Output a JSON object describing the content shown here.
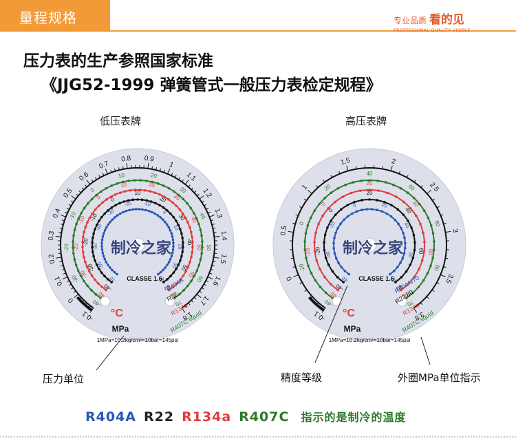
{
  "header": {
    "tab_label": "量程规格",
    "brand_prefix": "专业品质",
    "brand_highlight": "看的见",
    "brand_sub": "PROFESSIONAL QUALITY VISIBLE",
    "accent_color": "#f39a38"
  },
  "heading": {
    "line1": "压力表的生产参照国家标准",
    "line2": "《JJG52-1999 弹簧管式一般压力表检定规程》"
  },
  "gauges": {
    "low": {
      "caption": "低压表牌",
      "outer_ticks": [
        "-0.1",
        "0",
        "0.1",
        "0.2",
        "0.3",
        "0.4",
        "0.5",
        "0.6",
        "0.7",
        "0.8",
        "0.9",
        "1",
        "1.1",
        "1.2",
        "1.3",
        "1.4",
        "1.5",
        "1.6",
        "1.7",
        "1.8"
      ],
      "ring_green": [
        "-40",
        "-30",
        "-20",
        "-10",
        "0",
        "10",
        "20",
        "30",
        "40",
        "50",
        "60",
        "70"
      ],
      "ring_red": [
        "-40",
        "-30",
        "-20",
        "-10",
        "0",
        "10",
        "20",
        "30",
        "40",
        "50",
        "60",
        "70"
      ],
      "ring_black": [
        "-40",
        "-30",
        "-20",
        "-10",
        "0",
        "10",
        "20",
        "30",
        "40",
        "50",
        "60"
      ],
      "ring_blue": [
        "-70",
        "-60",
        "-50",
        "-40",
        "-30",
        "-20",
        "-10",
        "0",
        "10",
        "20",
        "30",
        "40"
      ],
      "class_label": "CLASSE 1.6",
      "temp_unit": "°C",
      "pressure_unit": "MPa",
      "conversion": "1MPa=10.2kg/cm²=10bar=145psi",
      "refrigerant_labels": [
        "R404A",
        "R22",
        "R134a",
        "R407C liquid"
      ],
      "watermark": "制冷之家"
    },
    "high": {
      "caption": "高压表牌",
      "outer_ticks": [
        "-0.1",
        "0",
        "0.5",
        "1",
        "1.5",
        "2",
        "2.5",
        "3",
        "3.5",
        "3.8"
      ],
      "ring_green": [
        "-40",
        "-20",
        "0",
        "20",
        "40",
        "60",
        "80",
        "60",
        "70"
      ],
      "ring_red": [
        "-40",
        "-20",
        "0",
        "20",
        "40",
        "60",
        "80"
      ],
      "ring_black": [
        "-40",
        "-20",
        "0",
        "20",
        "40",
        "60",
        "80"
      ],
      "ring_blue": [
        "-60",
        "-40",
        "-20",
        "0",
        "20",
        "40",
        "60",
        "70"
      ],
      "class_label": "CLASSE 1.6",
      "temp_unit": "°C",
      "pressure_unit": "MPa",
      "conversion": "1MPa=10.2kg/cm²=10bar=145psi",
      "refrigerant_labels": [
        "R404A/70",
        "R22 80",
        "R134a",
        "R407C liquid"
      ],
      "watermark": "制冷之家"
    }
  },
  "callouts": {
    "pressure_unit": "压力单位",
    "accuracy_class": "精度等级",
    "outer_mpa": "外圈MPa单位指示"
  },
  "legend": {
    "r404a": "R404A",
    "r22": "R22",
    "r134a": "R134a",
    "r407c": "R407C",
    "note": "指示的是制冷的温度",
    "colors": {
      "r404a": "#2a56b6",
      "r22": "#222222",
      "r134a": "#e03c3c",
      "r407c": "#2a7a2a",
      "note": "#2a7a2a"
    }
  }
}
